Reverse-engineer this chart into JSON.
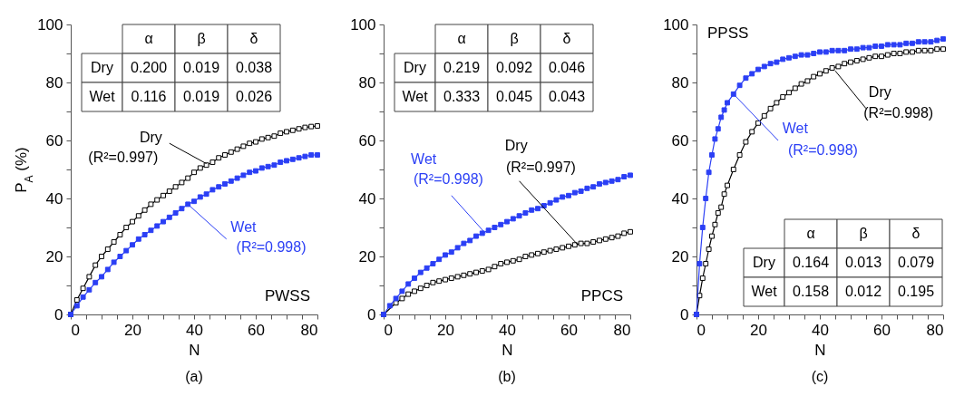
{
  "chart_data": [
    {
      "type": "line",
      "title": "(a)",
      "xlabel": "N",
      "ylabel": "P$_{A}$ (%)",
      "marker": "square",
      "line_style": "solid",
      "xlim": [
        0,
        80
      ],
      "xticks": [
        0,
        {
          "value": 5,
          "label": null
        },
        {
          "value": 10,
          "label": null
        },
        {
          "value": 15,
          "label": null
        },
        20,
        {
          "value": 25,
          "label": null
        },
        {
          "value": 30,
          "label": null
        },
        {
          "value": 35,
          "label": null
        },
        40,
        {
          "value": 45,
          "label": null
        },
        {
          "value": 50,
          "label": null
        },
        {
          "value": 55,
          "label": null
        },
        60,
        {
          "value": 65,
          "label": null
        },
        {
          "value": 70,
          "label": null
        },
        {
          "value": 75,
          "label": null
        },
        80
      ],
      "ylim": [
        0,
        100
      ],
      "yticks": [
        0,
        {
          "value": 10,
          "label": null
        },
        20,
        {
          "value": 30,
          "label": null
        },
        40,
        {
          "value": 50,
          "label": null
        },
        60,
        {
          "value": 70,
          "label": null
        },
        80,
        {
          "value": 90,
          "label": null
        },
        100
      ],
      "x": [
        0,
        2,
        4,
        6,
        8,
        10,
        12,
        14,
        16,
        18,
        20,
        22,
        24,
        26,
        28,
        30,
        32,
        34,
        36,
        38,
        40,
        42,
        44,
        46,
        48,
        50,
        52,
        54,
        56,
        58,
        60,
        62,
        64,
        66,
        68,
        70,
        72,
        74,
        76,
        78,
        80
      ],
      "series": [
        {
          "name": "Dry",
          "color": "#000000",
          "values": [
            0,
            5,
            9,
            13,
            17,
            20,
            22.5,
            25,
            27.5,
            30,
            32,
            34,
            36,
            38,
            39.5,
            41,
            42.5,
            44,
            45.5,
            47,
            49,
            50.5,
            51.5,
            52.5,
            54,
            55,
            56,
            57,
            58,
            59,
            59.5,
            60.5,
            61,
            61.5,
            62.5,
            63,
            63.5,
            64,
            64.5,
            64.8,
            65
          ]
        },
        {
          "name": "Wet",
          "color": "#2b3ff5",
          "values": [
            0,
            3,
            6,
            8.5,
            11,
            13,
            15.5,
            18,
            20,
            22,
            24,
            26,
            27.5,
            29,
            30.5,
            32,
            33.5,
            35,
            36.5,
            38,
            39,
            40.5,
            41.5,
            43,
            44,
            45,
            46,
            47,
            48,
            49,
            49.5,
            50.5,
            51,
            51.5,
            52.5,
            53,
            53.5,
            54,
            54.5,
            55,
            55
          ]
        }
      ],
      "annotations": [
        {
          "text": "(R²=0.997)",
          "x": 44,
          "y": 52
        },
        {
          "text": "(R²=0.998)",
          "x": 38,
          "y": 38
        },
        "α β δ",
        "Dry 0.200 0.019 0.038",
        "Wet 0.116 0.019 0.026",
        "PWSS"
      ]
    },
    {
      "type": "line",
      "title": "(b)",
      "xlabel": "N",
      "marker": "square",
      "line_style": "solid",
      "xlim": [
        0,
        80
      ],
      "xticks": [
        0,
        {
          "value": 5,
          "label": null
        },
        {
          "value": 10,
          "label": null
        },
        {
          "value": 15,
          "label": null
        },
        20,
        {
          "value": 25,
          "label": null
        },
        {
          "value": 30,
          "label": null
        },
        {
          "value": 35,
          "label": null
        },
        40,
        {
          "value": 45,
          "label": null
        },
        {
          "value": 50,
          "label": null
        },
        {
          "value": 55,
          "label": null
        },
        60,
        {
          "value": 65,
          "label": null
        },
        {
          "value": 70,
          "label": null
        },
        {
          "value": 75,
          "label": null
        },
        80
      ],
      "ylim": [
        0,
        100
      ],
      "yticks": [
        0,
        {
          "value": 10,
          "label": null
        },
        20,
        {
          "value": 30,
          "label": null
        },
        40,
        {
          "value": 50,
          "label": null
        },
        60,
        {
          "value": 70,
          "label": null
        },
        80,
        {
          "value": 90,
          "label": null
        },
        100
      ],
      "x": [
        0,
        2,
        4,
        6,
        8,
        10,
        12,
        14,
        16,
        18,
        20,
        22,
        24,
        26,
        28,
        30,
        32,
        34,
        36,
        38,
        40,
        42,
        44,
        46,
        48,
        50,
        52,
        54,
        56,
        58,
        60,
        62,
        64,
        66,
        68,
        70,
        72,
        74,
        76,
        78,
        80
      ],
      "series": [
        {
          "name": "Dry",
          "color": "#000000",
          "values": [
            0,
            null,
            4,
            5.5,
            7,
            8,
            9,
            10,
            11,
            11.5,
            12,
            12.5,
            13,
            13.5,
            14,
            14.5,
            15,
            15.5,
            16.5,
            17.5,
            18,
            18.5,
            19,
            20,
            20.5,
            21,
            21.5,
            22,
            22.5,
            23,
            23.5,
            24,
            24.5,
            24.5,
            25,
            25.5,
            26,
            26.5,
            27,
            28,
            28.5
          ]
        },
        {
          "name": "Wet",
          "color": "#2b3ff5",
          "values": [
            0,
            3,
            5.5,
            8,
            10.5,
            12.5,
            14.5,
            16,
            17.5,
            19,
            20.5,
            21.5,
            23,
            24.5,
            25.5,
            27,
            28,
            29,
            30,
            31,
            32,
            33,
            34,
            35,
            36,
            36.5,
            37.5,
            38.5,
            39.5,
            40.5,
            41,
            42,
            42.5,
            43.5,
            44,
            45,
            45.5,
            46,
            46.5,
            47.5,
            48
          ]
        }
      ],
      "annotations": [
        {
          "text": "(R²=0.997)",
          "x": 63,
          "y": 24
        },
        {
          "text": "(R²=0.998)",
          "x": 33,
          "y": 28
        },
        "α β δ",
        "Dry 0.219 0.092 0.046",
        "Wet 0.333 0.045 0.043",
        "PPCS"
      ]
    },
    {
      "type": "line",
      "title": "(c)",
      "xlabel": "N",
      "marker": "square",
      "line_style": "solid",
      "xlim": [
        0,
        80
      ],
      "xticks": [
        0,
        {
          "value": 5,
          "label": null
        },
        {
          "value": 10,
          "label": null
        },
        {
          "value": 15,
          "label": null
        },
        20,
        {
          "value": 25,
          "label": null
        },
        {
          "value": 30,
          "label": null
        },
        {
          "value": 35,
          "label": null
        },
        40,
        {
          "value": 45,
          "label": null
        },
        {
          "value": 50,
          "label": null
        },
        {
          "value": 55,
          "label": null
        },
        60,
        {
          "value": 65,
          "label": null
        },
        {
          "value": 70,
          "label": null
        },
        {
          "value": 75,
          "label": null
        },
        80
      ],
      "ylim": [
        0,
        100
      ],
      "yticks": [
        0,
        {
          "value": 10,
          "label": null
        },
        20,
        {
          "value": 30,
          "label": null
        },
        40,
        {
          "value": 50,
          "label": null
        },
        60,
        {
          "value": 70,
          "label": null
        },
        80,
        {
          "value": 90,
          "label": null
        },
        100
      ],
      "series": [
        {
          "name": "Dry",
          "color": "#000000",
          "x": [
            0,
            1,
            2,
            3,
            4,
            5,
            6,
            7,
            8,
            9,
            10,
            12,
            14,
            16,
            18,
            20,
            22,
            24,
            26,
            28,
            30,
            32,
            34,
            36,
            38,
            40,
            42,
            44,
            46,
            48,
            50,
            52,
            54,
            56,
            58,
            60,
            62,
            64,
            66,
            68,
            70,
            72,
            74,
            76,
            78,
            80
          ],
          "values": [
            0,
            6.5,
            12.5,
            17.5,
            22.5,
            27,
            31,
            35,
            37,
            41.5,
            44.5,
            50,
            55,
            59.5,
            63,
            66,
            68.5,
            71,
            73,
            75,
            76.5,
            78,
            79.5,
            80.5,
            82,
            83,
            84,
            85,
            85.5,
            86.5,
            87,
            87.5,
            88,
            88.5,
            89,
            89,
            89.5,
            90,
            90,
            90.5,
            90.5,
            91,
            91,
            91,
            91.5,
            91.5
          ]
        },
        {
          "name": "Wet",
          "color": "#2b3ff5",
          "x": [
            0,
            1,
            2,
            3,
            4,
            5,
            6,
            7,
            8,
            9,
            10,
            12,
            14,
            16,
            18,
            20,
            22,
            24,
            26,
            28,
            30,
            32,
            34,
            36,
            38,
            40,
            42,
            44,
            46,
            48,
            50,
            52,
            54,
            56,
            58,
            60,
            62,
            64,
            66,
            68,
            70,
            72,
            74,
            76,
            78,
            80
          ],
          "values": [
            0,
            17.5,
            30,
            40,
            49,
            55,
            60.5,
            64,
            68,
            70.5,
            73,
            76,
            79,
            81.5,
            83,
            84.5,
            85.5,
            86.5,
            87,
            88,
            88.5,
            89,
            89.5,
            89.5,
            90,
            90.5,
            90.5,
            91,
            91,
            91,
            91.5,
            91.5,
            92,
            92,
            92.5,
            92.5,
            93,
            93,
            93,
            93.5,
            93.5,
            94,
            94,
            94,
            94.5,
            95
          ]
        }
      ],
      "annotations": [
        {
          "text": "(R²=0.998)",
          "x": 45,
          "y": 84
        },
        {
          "text": "(R²=0.998)",
          "x": 12,
          "y": 76
        },
        "α β δ",
        "Dry 0.164 0.013 0.079",
        "Wet 0.158 0.012 0.195",
        "PPSS"
      ]
    }
  ]
}
